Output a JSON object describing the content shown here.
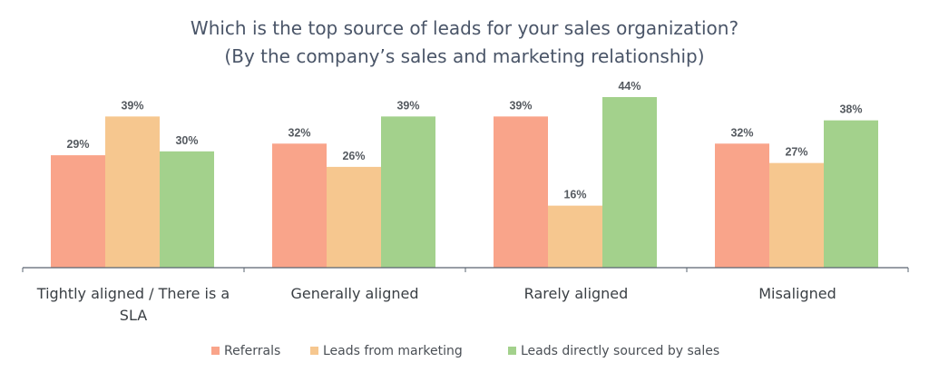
{
  "chart_data": {
    "type": "bar",
    "title": "Which is the top source of leads for your sales organization?",
    "subtitle": "(By the company’s sales and marketing relationship)",
    "categories": [
      [
        "Tightly aligned / There is a",
        "SLA"
      ],
      [
        "Generally aligned"
      ],
      [
        "Rarely aligned"
      ],
      [
        "Misaligned"
      ]
    ],
    "series": [
      {
        "name": "Referrals",
        "color": "#F9A48A",
        "values": [
          29,
          32,
          39,
          32
        ],
        "labels": [
          "29%",
          "32%",
          "39%",
          "32%"
        ]
      },
      {
        "name": "Leads from marketing",
        "color": "#F6C78F",
        "values": [
          39,
          26,
          16,
          27
        ],
        "labels": [
          "39%",
          "26%",
          "16%",
          "27%"
        ]
      },
      {
        "name": "Leads directly sourced by sales",
        "color": "#A3D18C",
        "values": [
          30,
          39,
          44,
          38
        ],
        "labels": [
          "30%",
          "39%",
          "44%",
          "38%"
        ]
      }
    ],
    "ylim": [
      0,
      53
    ],
    "grid": false,
    "legend_position": "bottom"
  }
}
